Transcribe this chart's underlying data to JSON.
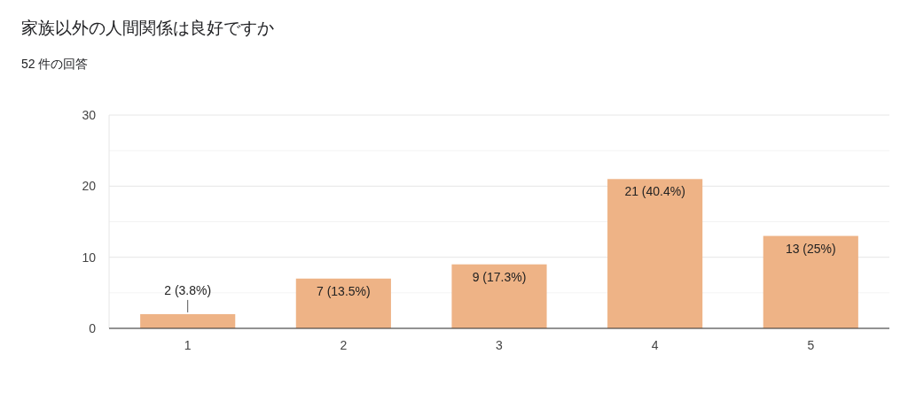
{
  "chart_data": {
    "type": "bar",
    "title": "家族以外の人間関係は良好ですか",
    "subtitle": "52 件の回答",
    "categories": [
      "1",
      "2",
      "3",
      "4",
      "5"
    ],
    "values": [
      2,
      7,
      9,
      21,
      13
    ],
    "value_labels": [
      "2 (3.8%)",
      "7 (13.5%)",
      "9 (17.3%)",
      "21 (40.4%)",
      "13 (25%)"
    ],
    "color": "#eeb386",
    "ylim": [
      0,
      30
    ],
    "yticks": [
      0,
      {
        "value": 5,
        "label": null
      },
      10,
      {
        "value": 15,
        "label": null
      },
      20,
      {
        "value": 25,
        "label": null
      },
      30
    ],
    "grid": true
  }
}
